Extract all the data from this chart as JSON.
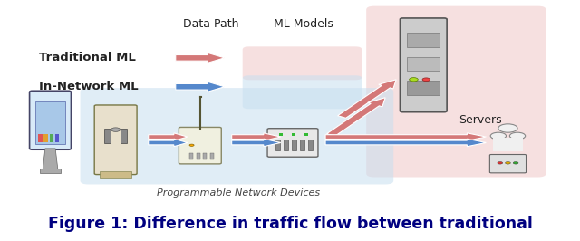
{
  "title": "Figure 1: Difference in traffic flow between traditional",
  "title_fontsize": 12.5,
  "background_color": "#ffffff",
  "data_path_label": "Data Path",
  "ml_models_label": "ML Models",
  "servers_label": "Servers",
  "prog_devices_label": "Programmable Network Devices",
  "red_box_color": "#f0c8c8",
  "blue_box_color": "#c8dff0",
  "red_arrow_color": "#d47878",
  "blue_arrow_color": "#5588cc",
  "trad_ml_label": "Traditional ML",
  "inet_ml_label": "In-Network ML",
  "fig_width": 6.4,
  "fig_height": 2.66,
  "dpi": 100
}
